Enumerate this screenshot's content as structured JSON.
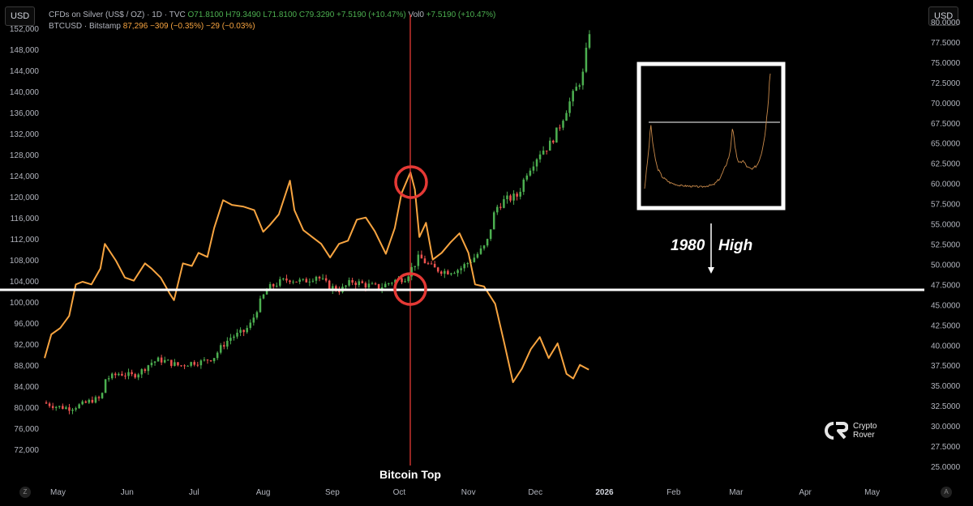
{
  "currency_left": "USD",
  "currency_right": "USD",
  "legend": {
    "silver_symbol": "CFDs on Silver (US$ / OZ) · 1D · TVC",
    "silver_o": "O71.8100",
    "silver_h": "H79.3490",
    "silver_l": "L71.8100",
    "silver_c": "C79.3290",
    "silver_chg": "+7.5190 (+10.47%)",
    "silver_vol_label": "Vol",
    "silver_vol": "0",
    "silver_vol_chg": "+7.5190 (+10.47%)",
    "btc_symbol": "BTCUSD · Bitstamp",
    "btc_price": "87,296",
    "btc_chg": "−309 (−0.35%)",
    "btc_chg2": "−29 (−0.03%)"
  },
  "annotations": {
    "event_label": "Bitcoin Top",
    "year_label": "1980",
    "high_label": "High"
  },
  "branding": {
    "line1": "Crypto",
    "line2": "Rover"
  },
  "corner_left": "Z",
  "corner_right": "A",
  "colors": {
    "background": "#000000",
    "btc_line": "#f7a440",
    "candle_up": "#4caf50",
    "candle_down": "#ef5350",
    "event_line": "#e53935",
    "circle": "#e53935",
    "level_line": "#ffffff"
  },
  "chart_data": {
    "type": "line",
    "title": "",
    "x_ticks": [
      "May",
      "Jun",
      "Jul",
      "Aug",
      "Sep",
      "Oct",
      "Nov",
      "Dec",
      "2026",
      "Feb",
      "Mar",
      "Apr",
      "May"
    ],
    "left_axis": {
      "series": "BTCUSD",
      "ylim": [
        68000,
        154000
      ],
      "ticks": [
        "152,000",
        "148,000",
        "144,000",
        "140,000",
        "136,000",
        "132,000",
        "128,000",
        "124,000",
        "120,000",
        "116,000",
        "112,000",
        "108,000",
        "104,000",
        "100,000",
        "96,000",
        "92,000",
        "88,000",
        "84,000",
        "80,000",
        "76,000",
        "72,000"
      ]
    },
    "right_axis": {
      "series": "Silver",
      "ylim": [
        24.5,
        80.5
      ],
      "ticks": [
        "80.0000",
        "77.5000",
        "75.0000",
        "72.5000",
        "70.0000",
        "67.5000",
        "65.0000",
        "62.5000",
        "60.0000",
        "57.5000",
        "55.0000",
        "52.5000",
        "50.0000",
        "47.5000",
        "45.0000",
        "42.5000",
        "40.0000",
        "37.5000",
        "35.0000",
        "32.5000",
        "30.0000",
        "27.5000",
        "25.0000"
      ]
    },
    "series": [
      {
        "name": "BTCUSD · Bitstamp",
        "axis": "left",
        "style": "line",
        "x": [
          "2025-04-25",
          "2025-04-28",
          "2025-05-02",
          "2025-05-06",
          "2025-05-09",
          "2025-05-12",
          "2025-05-16",
          "2025-05-20",
          "2025-05-22",
          "2025-05-27",
          "2025-05-31",
          "2025-06-04",
          "2025-06-09",
          "2025-06-12",
          "2025-06-16",
          "2025-06-20",
          "2025-06-22",
          "2025-06-26",
          "2025-06-30",
          "2025-07-03",
          "2025-07-07",
          "2025-07-10",
          "2025-07-14",
          "2025-07-18",
          "2025-07-23",
          "2025-07-28",
          "2025-08-01",
          "2025-08-04",
          "2025-08-08",
          "2025-08-13",
          "2025-08-15",
          "2025-08-19",
          "2025-08-23",
          "2025-08-27",
          "2025-08-31",
          "2025-09-04",
          "2025-09-08",
          "2025-09-12",
          "2025-09-16",
          "2025-09-20",
          "2025-09-25",
          "2025-09-29",
          "2025-10-02",
          "2025-10-06",
          "2025-10-08",
          "2025-10-10",
          "2025-10-13",
          "2025-10-16",
          "2025-10-20",
          "2025-10-24",
          "2025-10-28",
          "2025-11-01",
          "2025-11-04",
          "2025-11-08",
          "2025-11-13",
          "2025-11-17",
          "2025-11-21",
          "2025-11-25",
          "2025-11-29",
          "2025-12-03",
          "2025-12-07",
          "2025-12-11",
          "2025-12-15",
          "2025-12-18",
          "2025-12-21",
          "2025-12-25"
        ],
        "values": [
          89500,
          94000,
          95200,
          97500,
          103500,
          104000,
          103500,
          106500,
          111200,
          108000,
          104800,
          104200,
          107500,
          106500,
          104800,
          101800,
          100500,
          107500,
          107000,
          109500,
          108700,
          114200,
          119500,
          118600,
          118300,
          117600,
          113500,
          114800,
          116800,
          123200,
          117600,
          113800,
          112500,
          111200,
          108600,
          111200,
          111800,
          115800,
          116200,
          113600,
          109300,
          114200,
          120800,
          124800,
          121500,
          112500,
          115200,
          108200,
          109500,
          111500,
          113200,
          109500,
          103500,
          103100,
          99800,
          92500,
          84900,
          87500,
          91200,
          93500,
          89500,
          92300,
          86500,
          85600,
          88200,
          87300
        ]
      },
      {
        "name": "CFDs on Silver (US$ / OZ)",
        "axis": "right",
        "style": "candles",
        "x_start": "2025-04-25",
        "x_end": "2025-12-26",
        "close_path": [
          [
            0,
            33.0
          ],
          [
            0.06,
            32.5
          ],
          [
            0.12,
            32.3
          ],
          [
            0.18,
            32.8
          ],
          [
            0.22,
            33.3
          ],
          [
            0.26,
            33.5
          ],
          [
            0.28,
            36.0
          ],
          [
            0.3,
            36.1
          ],
          [
            0.34,
            36.6
          ],
          [
            0.36,
            36.5
          ],
          [
            0.4,
            36.3
          ],
          [
            0.44,
            36.9
          ],
          [
            0.48,
            37.9
          ],
          [
            0.52,
            38.3
          ],
          [
            0.56,
            38.0
          ],
          [
            0.6,
            37.6
          ],
          [
            0.62,
            37.6
          ],
          [
            0.64,
            37.8
          ],
          [
            0.68,
            38.0
          ],
          [
            0.71,
            38.0
          ],
          [
            0.74,
            38.4
          ],
          [
            0.76,
            38.5
          ],
          [
            0.8,
            40.0
          ],
          [
            0.84,
            41.1
          ],
          [
            0.86,
            41.3
          ],
          [
            0.9,
            41.8
          ],
          [
            0.93,
            42.8
          ],
          [
            0.96,
            44.9
          ],
          [
            1.0,
            47.0
          ],
          [
            1.05,
            47.8
          ],
          [
            1.1,
            48.3
          ],
          [
            1.16,
            47.9
          ],
          [
            1.22,
            48.7
          ],
          [
            1.28,
            47.3
          ],
          [
            1.33,
            46.9
          ],
          [
            1.38,
            48.0
          ],
          [
            1.45,
            47.5
          ],
          [
            1.5,
            47.2
          ],
          [
            1.56,
            48.0
          ],
          [
            1.62,
            48.5
          ],
          [
            1.68,
            51.0
          ],
          [
            1.74,
            49.6
          ],
          [
            1.8,
            49.2
          ],
          [
            1.86,
            49.5
          ],
          [
            1.92,
            50.8
          ],
          [
            1.98,
            52.5
          ],
          [
            2.02,
            57.0
          ],
          [
            2.06,
            58.0
          ],
          [
            2.12,
            58.6
          ],
          [
            2.16,
            61.5
          ],
          [
            2.22,
            64.0
          ],
          [
            2.26,
            64.8
          ],
          [
            2.3,
            66.8
          ],
          [
            2.34,
            69.5
          ],
          [
            2.38,
            71.8
          ],
          [
            2.41,
            73.5
          ],
          [
            2.44,
            79.0
          ]
        ]
      }
    ]
  }
}
